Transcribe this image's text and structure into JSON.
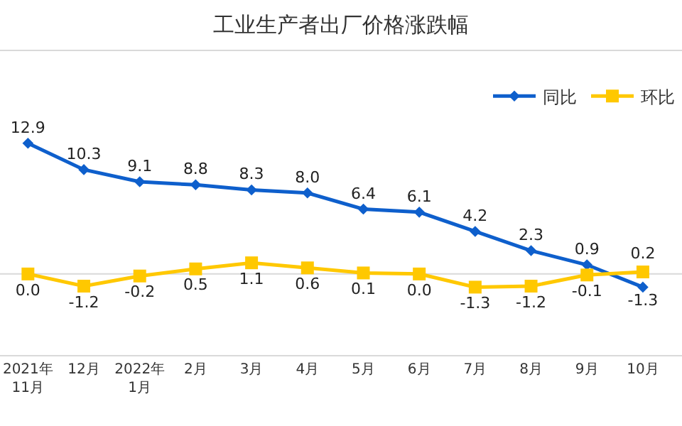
{
  "chart_data": {
    "type": "line",
    "title": "工业生产者出厂价格涨跌幅",
    "categories": [
      "2021年\n11月",
      "12月",
      "2022年\n1月",
      "2月",
      "3月",
      "4月",
      "5月",
      "6月",
      "7月",
      "8月",
      "9月",
      "10月"
    ],
    "series": [
      {
        "name": "同比",
        "color": "#0e5fcc",
        "marker": "diamond",
        "values": [
          12.9,
          10.3,
          9.1,
          8.8,
          8.3,
          8.0,
          6.4,
          6.1,
          4.2,
          2.3,
          0.9,
          -1.3
        ],
        "value_labels": [
          "12.9",
          "10.3",
          "9.1",
          "8.8",
          "8.3",
          "8.0",
          "6.4",
          "6.1",
          "4.2",
          "2.3",
          "0.9",
          "-1.3"
        ]
      },
      {
        "name": "环比",
        "color": "#ffc800",
        "marker": "square",
        "values": [
          0.0,
          -1.2,
          -0.2,
          0.5,
          1.1,
          0.6,
          0.1,
          0.0,
          -1.3,
          -1.2,
          -0.1,
          0.2
        ],
        "value_labels": [
          "0.0",
          "-1.2",
          "-0.2",
          "0.5",
          "1.1",
          "0.6",
          "0.1",
          "0.0",
          "-1.3",
          "-1.2",
          "-0.1",
          "0.2"
        ]
      }
    ],
    "ylim": [
      -8,
      22
    ],
    "tick_labels": "x",
    "grid": false,
    "legend": "top right",
    "ref_lines": [
      {
        "axis": "y",
        "value": 0,
        "color": "#d9d9d9"
      }
    ]
  }
}
